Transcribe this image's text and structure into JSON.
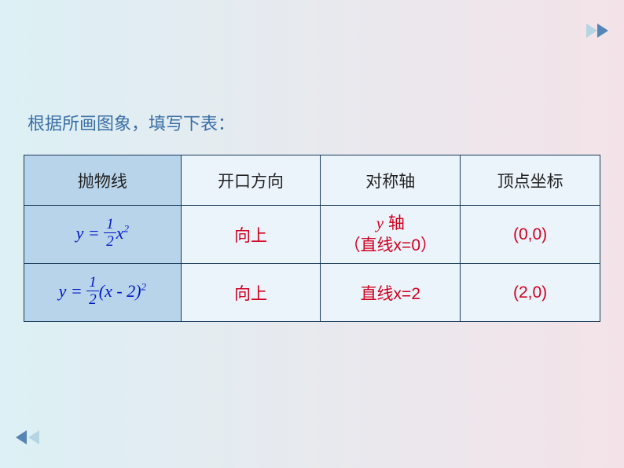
{
  "title": "根据所画图象，填写下表：",
  "table": {
    "headers": [
      "抛物线",
      "开口方向",
      "对称轴",
      "顶点坐标"
    ],
    "rows": [
      {
        "formula_y": "y",
        "formula_eq": " = ",
        "frac_num": "1",
        "frac_den": "2",
        "var": "x",
        "exp": "2",
        "extra": "",
        "direction": "向上",
        "axis_prefix": "y",
        "axis_main": " 轴",
        "axis_sub": "（直线x=0）",
        "vertex": "(0,0)"
      },
      {
        "formula_y": "y",
        "formula_eq": " = ",
        "frac_num": "1",
        "frac_den": "2",
        "var": "(x",
        "minus": " - 2)",
        "exp": "2",
        "direction": "向上",
        "axis_main": "直线x=2",
        "vertex": "(2,0)"
      }
    ]
  },
  "colors": {
    "title": "#3a6ea5",
    "formula": "#0018c8",
    "answer": "#d1001f",
    "border": "#1a3a5c",
    "header_bg": "#b8d4ea",
    "cell_bg": "#ecf4fb"
  }
}
